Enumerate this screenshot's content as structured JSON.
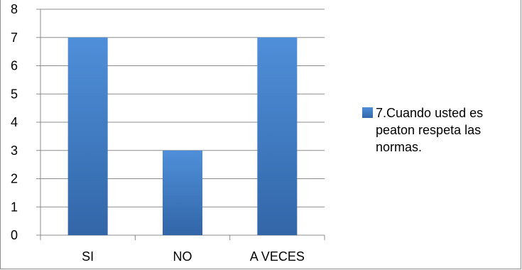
{
  "chart_data": {
    "type": "bar",
    "categories": [
      "SI",
      "NO",
      "A VECES"
    ],
    "series": [
      {
        "name": "7.Cuando usted es peaton respeta las normas.",
        "values": [
          7,
          3,
          7
        ]
      }
    ],
    "yticks": [
      "0",
      "1",
      "2",
      "3",
      "4",
      "5",
      "6",
      "7",
      "8"
    ],
    "ylim": [
      0,
      8
    ],
    "title": "",
    "xlabel": "",
    "ylabel": "",
    "grid": "horizontal",
    "legend_position": "right",
    "colors": {
      "bar_top": "#4f8fd9",
      "bar_bottom": "#3266a8",
      "grid": "#8c8c8c",
      "axis": "#8c8c8c"
    }
  }
}
